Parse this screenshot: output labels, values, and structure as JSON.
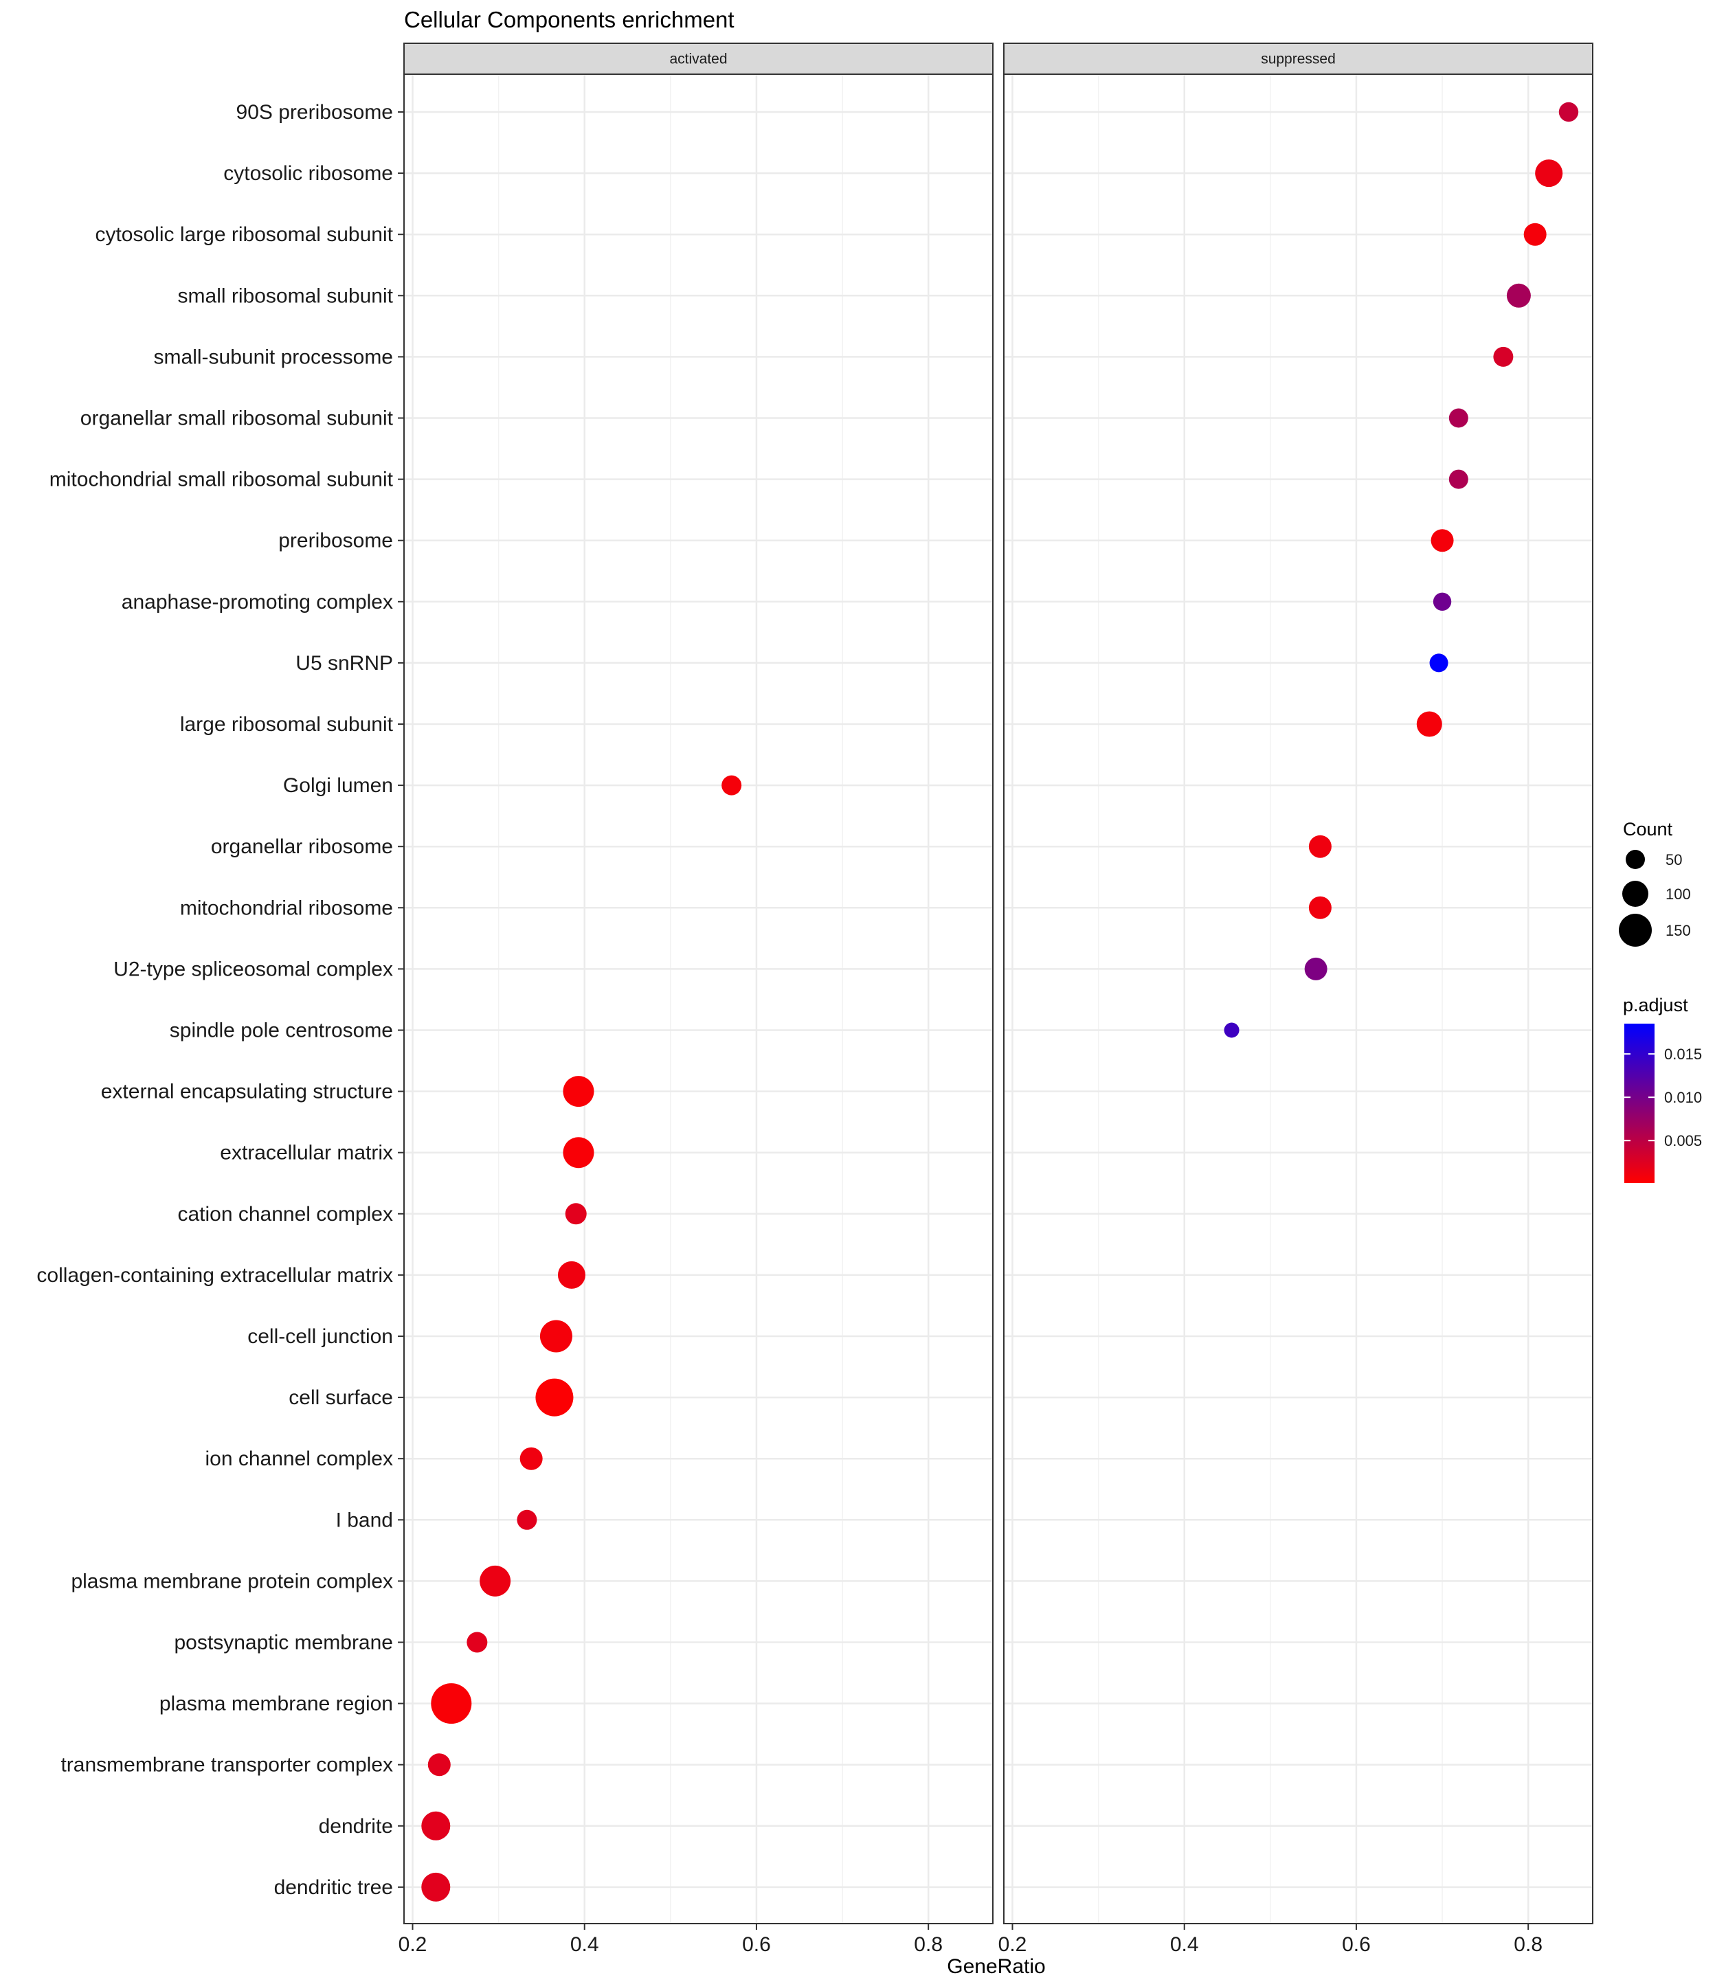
{
  "chart_data": {
    "type": "scatter",
    "title": "Cellular Components enrichment",
    "xlabel": "GeneRatio",
    "ylabel": "",
    "xlim": [
      0.19,
      0.875
    ],
    "xticks": [
      0.2,
      0.4,
      0.6,
      0.8
    ],
    "xtick_labels": [
      "0.2",
      "0.4",
      "0.6",
      "0.8"
    ],
    "facets": [
      "activated",
      "suppressed"
    ],
    "categories": [
      "90S preribosome",
      "cytosolic ribosome",
      "cytosolic large ribosomal subunit",
      "small ribosomal subunit",
      "small-subunit processome",
      "organellar small ribosomal subunit",
      "mitochondrial small ribosomal subunit",
      "preribosome",
      "anaphase-promoting complex",
      "U5 snRNP",
      "large ribosomal subunit",
      "Golgi lumen",
      "organellar ribosome",
      "mitochondrial ribosome",
      "U2-type spliceosomal complex",
      "spindle pole centrosome",
      "external encapsulating structure",
      "extracellular matrix",
      "cation channel complex",
      "collagen-containing extracellular matrix",
      "cell-cell junction",
      "cell surface",
      "ion channel complex",
      "I band",
      "plasma membrane protein complex",
      "postsynaptic membrane",
      "plasma membrane region",
      "transmembrane transporter complex",
      "dendrite",
      "dendritic tree"
    ],
    "points": [
      {
        "facet": "suppressed",
        "category": "90S preribosome",
        "gene_ratio": 0.847,
        "count": 52,
        "p_adjust": 0.004
      },
      {
        "facet": "suppressed",
        "category": "cytosolic ribosome",
        "gene_ratio": 0.824,
        "count": 110,
        "p_adjust": 0.0015
      },
      {
        "facet": "suppressed",
        "category": "cytosolic large ribosomal subunit",
        "gene_ratio": 0.808,
        "count": 75,
        "p_adjust": 0.0008
      },
      {
        "facet": "suppressed",
        "category": "small ribosomal subunit",
        "gene_ratio": 0.789,
        "count": 85,
        "p_adjust": 0.0065
      },
      {
        "facet": "suppressed",
        "category": "small-subunit processome",
        "gene_ratio": 0.771,
        "count": 55,
        "p_adjust": 0.003
      },
      {
        "facet": "suppressed",
        "category": "organellar small ribosomal subunit",
        "gene_ratio": 0.719,
        "count": 50,
        "p_adjust": 0.006
      },
      {
        "facet": "suppressed",
        "category": "mitochondrial small ribosomal subunit",
        "gene_ratio": 0.719,
        "count": 50,
        "p_adjust": 0.006
      },
      {
        "facet": "suppressed",
        "category": "preribosome",
        "gene_ratio": 0.7,
        "count": 75,
        "p_adjust": 0.0008
      },
      {
        "facet": "suppressed",
        "category": "anaphase-promoting complex",
        "gene_ratio": 0.7,
        "count": 42,
        "p_adjust": 0.0105
      },
      {
        "facet": "suppressed",
        "category": "U5 snRNP",
        "gene_ratio": 0.696,
        "count": 45,
        "p_adjust": 0.0185
      },
      {
        "facet": "suppressed",
        "category": "large ribosomal subunit",
        "gene_ratio": 0.685,
        "count": 95,
        "p_adjust": 0.0008
      },
      {
        "facet": "activated",
        "category": "Golgi lumen",
        "gene_ratio": 0.571,
        "count": 55,
        "p_adjust": 0.0008
      },
      {
        "facet": "suppressed",
        "category": "organellar ribosome",
        "gene_ratio": 0.558,
        "count": 75,
        "p_adjust": 0.0012
      },
      {
        "facet": "suppressed",
        "category": "mitochondrial ribosome",
        "gene_ratio": 0.558,
        "count": 75,
        "p_adjust": 0.0012
      },
      {
        "facet": "suppressed",
        "category": "U2-type spliceosomal complex",
        "gene_ratio": 0.553,
        "count": 75,
        "p_adjust": 0.0095
      },
      {
        "facet": "suppressed",
        "category": "spindle pole centrosome",
        "gene_ratio": 0.455,
        "count": 20,
        "p_adjust": 0.014
      },
      {
        "facet": "activated",
        "category": "external encapsulating structure",
        "gene_ratio": 0.393,
        "count": 135,
        "p_adjust": 0.0005
      },
      {
        "facet": "activated",
        "category": "extracellular matrix",
        "gene_ratio": 0.393,
        "count": 135,
        "p_adjust": 0.0005
      },
      {
        "facet": "activated",
        "category": "cation channel complex",
        "gene_ratio": 0.39,
        "count": 65,
        "p_adjust": 0.0022
      },
      {
        "facet": "activated",
        "category": "collagen-containing extracellular matrix",
        "gene_ratio": 0.385,
        "count": 110,
        "p_adjust": 0.0012
      },
      {
        "facet": "activated",
        "category": "cell-cell junction",
        "gene_ratio": 0.367,
        "count": 145,
        "p_adjust": 0.0008
      },
      {
        "facet": "activated",
        "category": "cell surface",
        "gene_ratio": 0.365,
        "count": 185,
        "p_adjust": 0.0003
      },
      {
        "facet": "activated",
        "category": "ion channel complex",
        "gene_ratio": 0.338,
        "count": 75,
        "p_adjust": 0.0012
      },
      {
        "facet": "activated",
        "category": "I band",
        "gene_ratio": 0.333,
        "count": 55,
        "p_adjust": 0.0022
      },
      {
        "facet": "activated",
        "category": "plasma membrane protein complex",
        "gene_ratio": 0.296,
        "count": 135,
        "p_adjust": 0.0015
      },
      {
        "facet": "activated",
        "category": "postsynaptic membrane",
        "gene_ratio": 0.275,
        "count": 60,
        "p_adjust": 0.0022
      },
      {
        "facet": "activated",
        "category": "plasma membrane region",
        "gene_ratio": 0.245,
        "count": 205,
        "p_adjust": 0.0005
      },
      {
        "facet": "activated",
        "category": "transmembrane transporter complex",
        "gene_ratio": 0.231,
        "count": 75,
        "p_adjust": 0.0022
      },
      {
        "facet": "activated",
        "category": "dendrite",
        "gene_ratio": 0.227,
        "count": 120,
        "p_adjust": 0.0022
      },
      {
        "facet": "activated",
        "category": "dendritic tree",
        "gene_ratio": 0.227,
        "count": 120,
        "p_adjust": 0.0022
      }
    ],
    "size_legend": {
      "title": "Count",
      "values": [
        50,
        100,
        150
      ],
      "labels": [
        "50",
        "100",
        "150"
      ]
    },
    "color_legend": {
      "title": "p.adjust",
      "ticks": [
        0.005,
        0.01,
        0.015
      ],
      "labels": [
        "0.005",
        "0.010",
        "0.015"
      ],
      "range": [
        0.0001,
        0.0185
      ],
      "low_color": "#ff0000",
      "high_color": "#0000ff"
    }
  }
}
